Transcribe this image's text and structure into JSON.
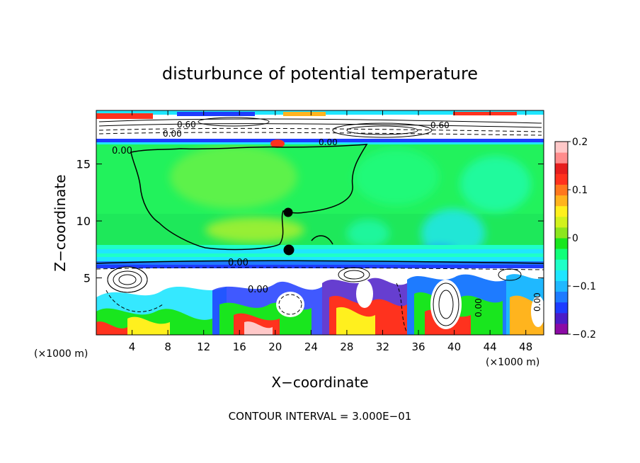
{
  "chart_data": {
    "type": "heatmap",
    "title": "disturbunce of potential temperature",
    "xlabel": "X−coordinate",
    "ylabel": "Z−coordinate",
    "x_unit": "(×1000 m)",
    "x_unit_right": "(×1000 m)",
    "xlim": [
      0,
      50
    ],
    "ylim": [
      0,
      19.7
    ],
    "xticks": [
      4,
      8,
      12,
      16,
      20,
      24,
      28,
      32,
      36,
      40,
      44,
      48
    ],
    "yticks": [
      5,
      10,
      15
    ],
    "colorbar": {
      "ticks": [
        "0.2",
        "0.1",
        "0",
        "−0.1",
        "−0.2"
      ],
      "values": [
        0.2,
        0.1,
        0,
        -0.1,
        -0.2
      ],
      "range": [
        -0.2,
        0.2
      ],
      "colors": [
        "#8b0aa5",
        "#4b1cc8",
        "#1e3cff",
        "#1e7bff",
        "#1fb8ff",
        "#1fe6ff",
        "#1fffc8",
        "#11ff7a",
        "#19e61e",
        "#8ce61e",
        "#d2f21e",
        "#fff01e",
        "#ffb41e",
        "#ff781e",
        "#ff321e",
        "#e61e1e",
        "#ff8c8c",
        "#ffc8c8"
      ]
    },
    "contour_labels": [
      "0.00",
      "0.00",
      "0.00",
      "0.00",
      "0.60",
      "0.60",
      "0.00",
      "0.00",
      "0.00"
    ],
    "footer": "CONTOUR INTERVAL = 3.000E−01"
  }
}
